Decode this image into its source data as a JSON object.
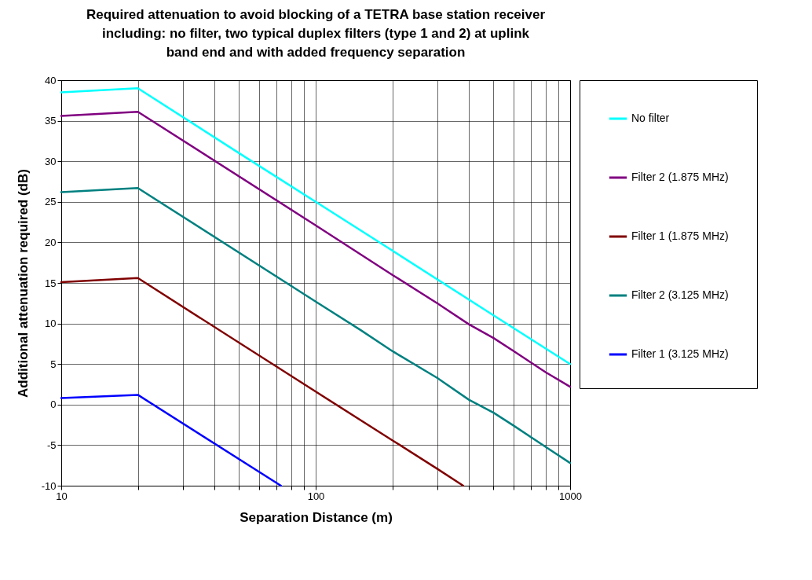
{
  "chart_data": {
    "type": "line",
    "title": "Required attenuation to avoid blocking of a TETRA base station receiver including: no filter, two typical duplex filters (type 1 and 2) at uplink band end and with added frequency separation",
    "xlabel": "Separation Distance (m)",
    "ylabel": "Additional attenuation required (dB)",
    "log": "x",
    "grid": true,
    "legend": "right",
    "marker": "none",
    "line_style": "solid",
    "xlim": [
      10,
      1000
    ],
    "xticks": [
      10,
      {
        "value": 20,
        "label": null
      },
      {
        "value": 30,
        "label": null
      },
      {
        "value": 40,
        "label": null
      },
      {
        "value": 50,
        "label": null
      },
      {
        "value": 60,
        "label": null
      },
      {
        "value": 70,
        "label": null
      },
      {
        "value": 80,
        "label": null
      },
      {
        "value": 90,
        "label": null
      },
      100,
      {
        "value": 200,
        "label": null
      },
      {
        "value": 300,
        "label": null
      },
      {
        "value": 400,
        "label": null
      },
      {
        "value": 500,
        "label": null
      },
      {
        "value": 600,
        "label": null
      },
      {
        "value": 700,
        "label": null
      },
      {
        "value": 800,
        "label": null
      },
      {
        "value": 900,
        "label": null
      },
      1000
    ],
    "ylim": [
      -10,
      40
    ],
    "yticks": [
      -10,
      -5,
      0,
      5,
      10,
      15,
      20,
      25,
      30,
      35,
      40
    ],
    "series": [
      {
        "name": "No filter",
        "color": "#00ffff",
        "x": [
          10,
          20,
          50,
          100,
          200,
          500,
          1000
        ],
        "values": [
          38.5,
          39.0,
          31.0,
          25.0,
          19.0,
          11.0,
          5.0
        ]
      },
      {
        "name": "Filter 2 (1.875 MHz)",
        "color": "#800080",
        "x": [
          10,
          20,
          100,
          200,
          300,
          400,
          500,
          600,
          800,
          1000
        ],
        "values": [
          35.6,
          36.1,
          22.1,
          16.0,
          12.5,
          9.9,
          8.2,
          6.6,
          4.0,
          2.2
        ]
      },
      {
        "name": "Filter 1 (1.875 MHz)",
        "color": "#800000",
        "x": [
          10,
          20,
          100,
          200,
          300,
          380
        ],
        "values": [
          15.1,
          15.6,
          1.6,
          -4.4,
          -7.9,
          -10.0
        ]
      },
      {
        "name": "Filter 2 (3.125 MHz)",
        "color": "#008080",
        "x": [
          10,
          20,
          100,
          150,
          200,
          300,
          400,
          500,
          600,
          800,
          1000
        ],
        "values": [
          26.2,
          26.7,
          12.7,
          9.2,
          6.6,
          3.3,
          0.6,
          -1.0,
          -2.6,
          -5.2,
          -7.2
        ]
      },
      {
        "name": "Filter 1 (3.125 MHz)",
        "color": "#0000ff",
        "x": [
          10,
          20,
          73
        ],
        "values": [
          0.8,
          1.2,
          -10.0
        ]
      }
    ]
  }
}
